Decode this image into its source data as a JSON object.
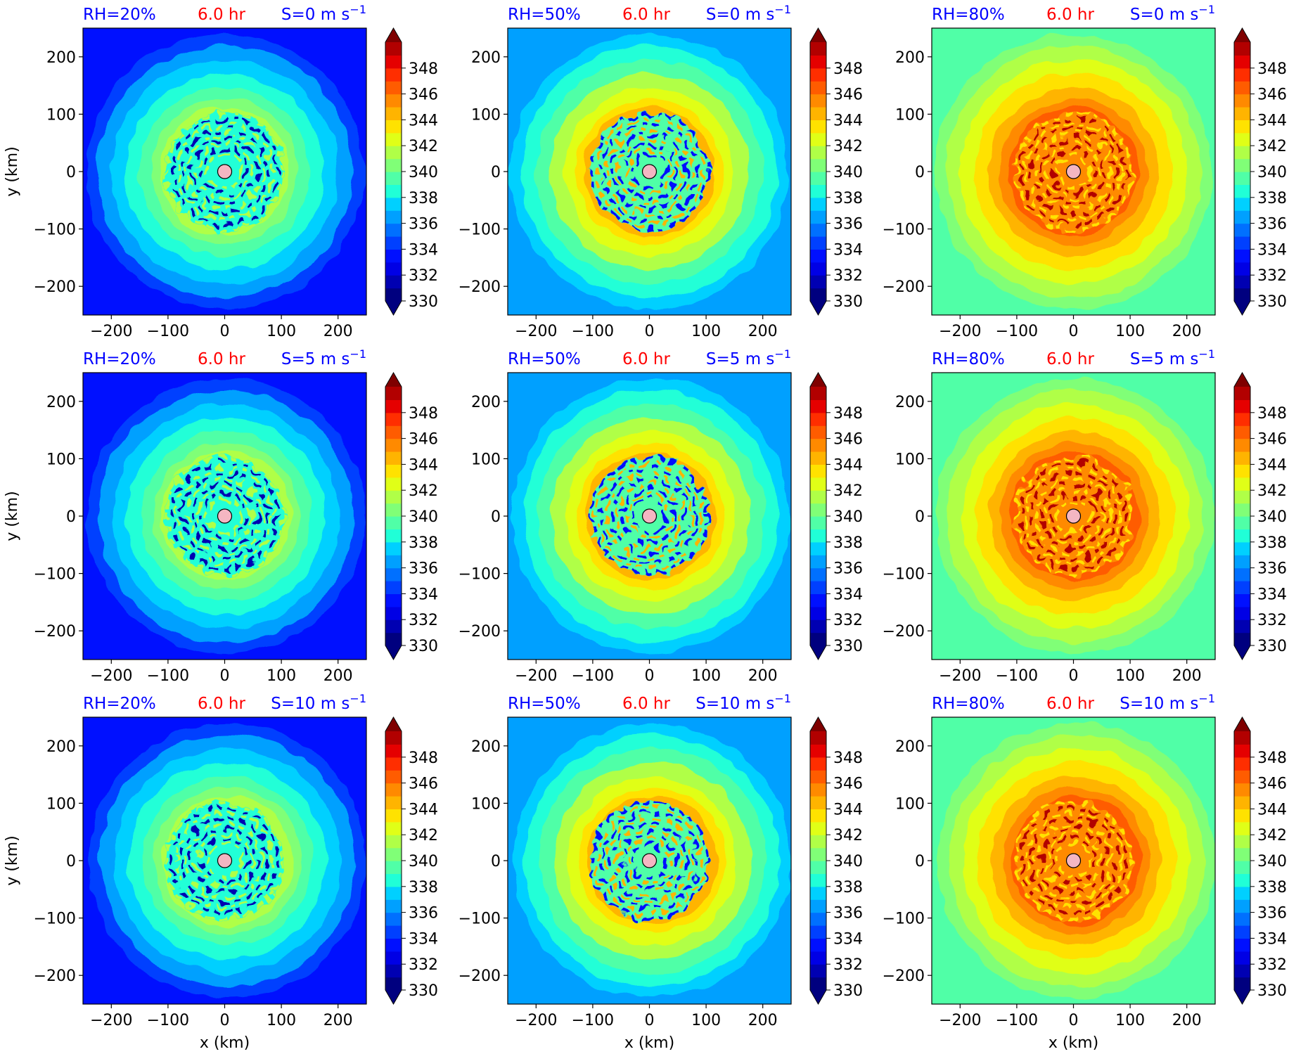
{
  "chart_data": {
    "type": "heatmap",
    "description_var": "filled contour panels of a TC simulation",
    "time_label": "6.0 hr",
    "xlabel": "x (km)",
    "ylabel": "y (km)",
    "xlim": [
      -250,
      250
    ],
    "ylim": [
      -250,
      250
    ],
    "xticks": [
      -200,
      -100,
      0,
      100,
      200
    ],
    "yticks": [
      -200,
      -100,
      0,
      100,
      200
    ],
    "xtick_labels": [
      "−200",
      "−100",
      "0",
      "100",
      "200"
    ],
    "ytick_labels": [
      "−200",
      "−100",
      "0",
      "100",
      "200"
    ],
    "colorbar": {
      "min": 330,
      "max": 350,
      "step": 1,
      "extend": "both",
      "tick_values": [
        330,
        332,
        334,
        336,
        338,
        340,
        342,
        344,
        346,
        348
      ],
      "tick_labels": [
        "330",
        "332",
        "334",
        "336",
        "338",
        "340",
        "342",
        "344",
        "346",
        "348"
      ],
      "colors": [
        "#00007f",
        "#0000b2",
        "#0000e5",
        "#0010ff",
        "#0040ff",
        "#0070ff",
        "#00a0ff",
        "#00d0ff",
        "#20ffd7",
        "#50ffa7",
        "#80ff77",
        "#b0ff47",
        "#e0ff17",
        "#ffe200",
        "#ffb400",
        "#ff8a00",
        "#ff5c00",
        "#ff2e00",
        "#e50000",
        "#b20000"
      ],
      "under_color": "#00007f",
      "over_color": "#7f0000"
    },
    "center_marker": {
      "x": 0,
      "y": 0,
      "fill": "#f4b6c2",
      "edge": "#000000"
    },
    "rows": [
      {
        "shear_prefix": "S=0 m s",
        "shear_value": 0
      },
      {
        "shear_prefix": "S=5 m s",
        "shear_value": 5
      },
      {
        "shear_prefix": "S=10 m s",
        "shear_value": 10
      }
    ],
    "shear_exponent": "−1",
    "columns": [
      {
        "rh_label": "RH=20%",
        "rh": 20,
        "environment_value": 333.5,
        "outer_ring_value": 336.5,
        "peak_value": 341.5,
        "eye_value": 338.5
      },
      {
        "rh_label": "RH=50%",
        "rh": 50,
        "environment_value": 336.5,
        "outer_ring_value": 338.5,
        "peak_value": 344.5,
        "eye_value": 339.5
      },
      {
        "rh_label": "RH=80%",
        "rh": 80,
        "environment_value": 339.5,
        "outer_ring_value": 341.5,
        "peak_value": 346.5,
        "eye_value": 345.5
      }
    ]
  }
}
